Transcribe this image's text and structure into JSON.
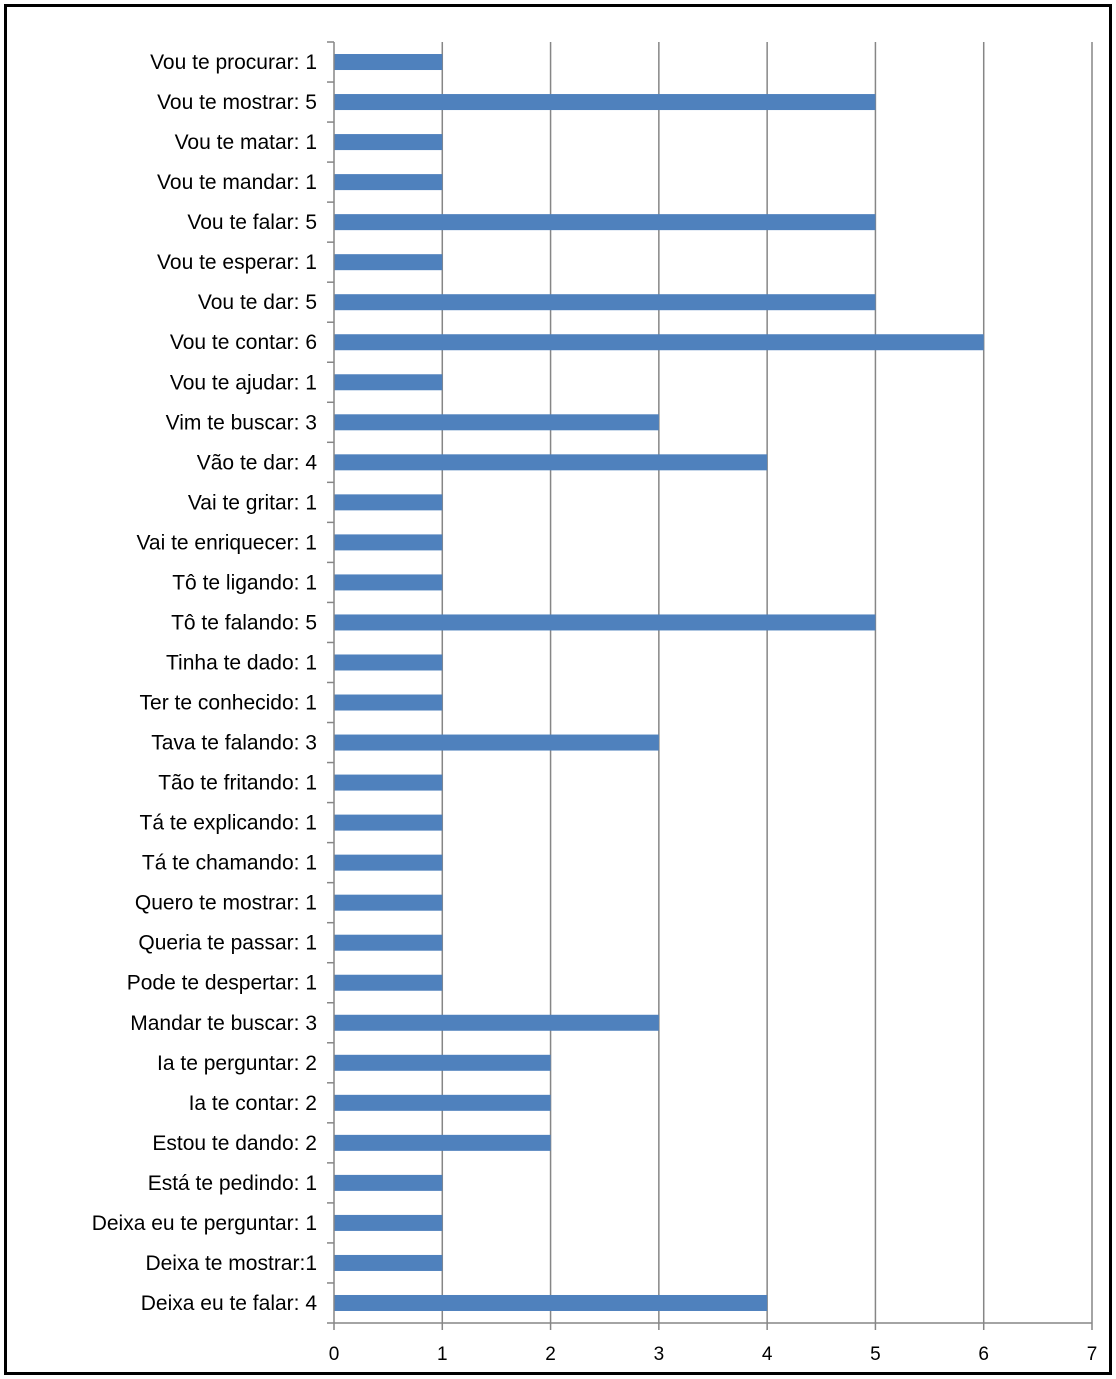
{
  "chart_data": {
    "type": "bar",
    "orientation": "horizontal",
    "categories": [
      "Vou te procurar: 1",
      "Vou te mostrar: 5",
      "Vou te matar: 1",
      "Vou te mandar: 1",
      "Vou te falar: 5",
      "Vou te esperar: 1",
      "Vou te dar: 5",
      "Vou te contar: 6",
      "Vou te ajudar: 1",
      "Vim te buscar: 3",
      "Vão te dar: 4",
      "Vai te gritar: 1",
      "Vai te enriquecer: 1",
      "Tô te ligando: 1",
      "Tô te falando: 5",
      "Tinha te dado: 1",
      "Ter te conhecido: 1",
      "Tava te falando: 3",
      "Tão te fritando: 1",
      "Tá te explicando: 1",
      "Tá te chamando: 1",
      "Quero te mostrar: 1",
      "Queria te passar: 1",
      "Pode te despertar: 1",
      "Mandar te buscar: 3",
      "Ia te perguntar: 2",
      "Ia te contar: 2",
      "Estou te dando: 2",
      "Está te pedindo: 1",
      "Deixa eu te perguntar: 1",
      "Deixa te mostrar:1",
      "Deixa eu te falar: 4"
    ],
    "values": [
      1,
      5,
      1,
      1,
      5,
      1,
      5,
      6,
      1,
      3,
      4,
      1,
      1,
      1,
      5,
      1,
      1,
      3,
      1,
      1,
      1,
      1,
      1,
      1,
      3,
      2,
      2,
      2,
      1,
      1,
      1,
      4
    ],
    "xlim": [
      0,
      7
    ],
    "xticks": [
      "0",
      "1",
      "2",
      "3",
      "4",
      "5",
      "6",
      "7"
    ],
    "title": "",
    "xlabel": "",
    "ylabel": "",
    "grid": "vertical",
    "legend": "none",
    "bar_color": "#4F81BD",
    "grid_color": "#868686"
  }
}
